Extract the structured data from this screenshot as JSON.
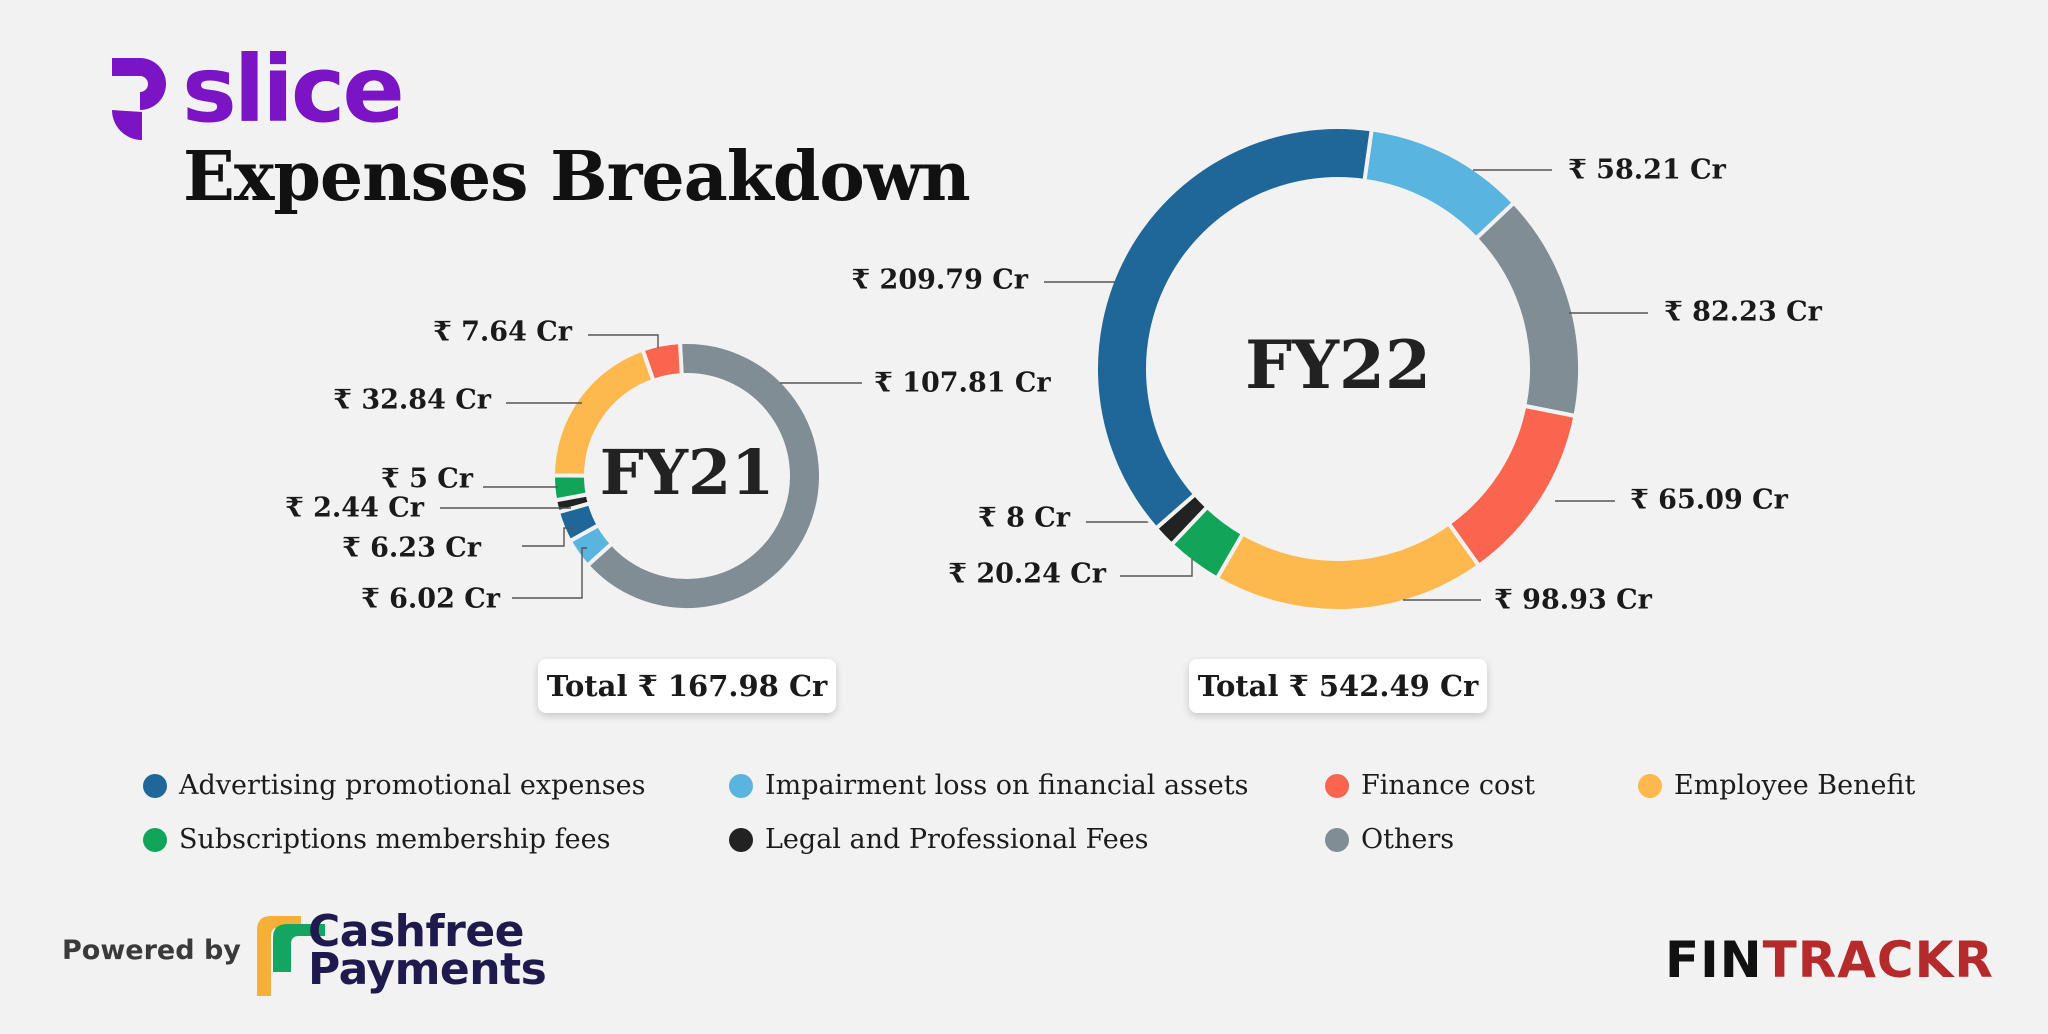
{
  "logo": {
    "text": "slice",
    "color": "#7b14c4"
  },
  "title": "Expenses Breakdown",
  "colors": {
    "advertising": "#1f6699",
    "impairment": "#5ab4e0",
    "finance": "#f9654f",
    "employee": "#fdb94e",
    "subscriptions": "#12a55a",
    "legal": "#222222",
    "others": "#818d95"
  },
  "chart_data": [
    {
      "type": "pie",
      "center_label": "FY21",
      "total_label": "Total ₹ 167.98 Cr",
      "unit": "Cr",
      "slices": [
        {
          "category": "Others",
          "value": 107.81,
          "label": "₹ 107.81 Cr"
        },
        {
          "category": "Impairment loss on financial assets",
          "value": 6.02,
          "label": "₹ 6.02 Cr"
        },
        {
          "category": "Advertising promotional expenses",
          "value": 6.23,
          "label": "₹ 6.23 Cr"
        },
        {
          "category": "Legal and Professional Fees",
          "value": 2.44,
          "label": "₹ 2.44 Cr"
        },
        {
          "category": "Subscriptions membership fees",
          "value": 5,
          "label": "₹ 5 Cr"
        },
        {
          "category": "Employee Benefit",
          "value": 32.84,
          "label": "₹ 32.84 Cr"
        },
        {
          "category": "Finance cost",
          "value": 7.64,
          "label": "₹ 7.64 Cr"
        }
      ]
    },
    {
      "type": "pie",
      "center_label": "FY22",
      "total_label": "Total ₹ 542.49 Cr",
      "unit": "Cr",
      "slices": [
        {
          "category": "Impairment loss on financial assets",
          "value": 58.21,
          "label": "₹ 58.21 Cr"
        },
        {
          "category": "Others",
          "value": 82.23,
          "label": "₹ 82.23 Cr"
        },
        {
          "category": "Finance cost",
          "value": 65.09,
          "label": "₹ 65.09 Cr"
        },
        {
          "category": "Employee Benefit",
          "value": 98.93,
          "label": "₹ 98.93 Cr"
        },
        {
          "category": "Subscriptions membership fees",
          "value": 20.24,
          "label": "₹ 20.24 Cr"
        },
        {
          "category": "Legal and Professional Fees",
          "value": 8,
          "label": "₹ 8 Cr"
        },
        {
          "category": "Advertising promotional expenses",
          "value": 209.79,
          "label": "₹ 209.79 Cr"
        }
      ]
    }
  ],
  "legend": [
    {
      "key": "advertising",
      "label": "Advertising promotional expenses"
    },
    {
      "key": "impairment",
      "label": "Impairment loss on financial assets"
    },
    {
      "key": "finance",
      "label": "Finance cost"
    },
    {
      "key": "employee",
      "label": "Employee Benefit"
    },
    {
      "key": "subscriptions",
      "label": "Subscriptions membership fees"
    },
    {
      "key": "legal",
      "label": "Legal and Professional Fees"
    },
    {
      "key": "others",
      "label": "Others"
    }
  ],
  "footer": {
    "powered_by": "Powered by",
    "sponsor_line1": "Cashfree",
    "sponsor_line2": "Payments",
    "brand_part1": "FIN",
    "brand_part2": "TRACKR"
  }
}
